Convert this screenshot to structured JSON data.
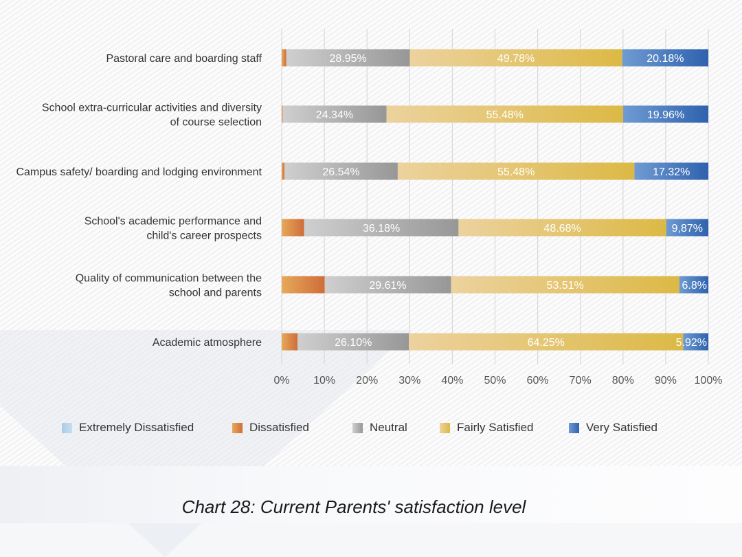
{
  "chart_data": {
    "type": "bar",
    "orientation": "horizontal",
    "stacked": true,
    "title": "Chart 28: Current Parents' satisfaction level",
    "xlabel": "",
    "ylabel": "",
    "xlim": [
      0,
      100
    ],
    "x_ticks": [
      "0%",
      "10%",
      "20%",
      "30%",
      "40%",
      "50%",
      "60%",
      "70%",
      "80%",
      "90%",
      "100%"
    ],
    "grid": true,
    "legend_position": "bottom",
    "categories": [
      [
        "Pastoral care and boarding staff"
      ],
      [
        "School extra-curricular activities and diversity",
        "of course selection"
      ],
      [
        "Campus safety/ boarding and lodging environment"
      ],
      [
        "School's academic performance and",
        "child's career prospects"
      ],
      [
        "Quality of communication between the",
        "school and parents"
      ],
      [
        "Academic atmosphere"
      ]
    ],
    "series": [
      {
        "name": "Extremely Dissatisfied",
        "color": "#a9cbe8",
        "color2": "#c9def0",
        "values": [
          0,
          0,
          0,
          0,
          0,
          0
        ],
        "labels": [
          "",
          "",
          "",
          "",
          "",
          ""
        ]
      },
      {
        "name": "Dissatisfied",
        "color": "#e6a95a",
        "color2": "#cf6d3a",
        "values": [
          1.09,
          0.22,
          0.66,
          5.27,
          10.08,
          3.73
        ],
        "labels": [
          "",
          "",
          "",
          "",
          "",
          ""
        ]
      },
      {
        "name": "Neutral",
        "color": "#cfcfcf",
        "color2": "#979797",
        "values": [
          28.95,
          24.34,
          26.54,
          36.18,
          29.61,
          26.1
        ],
        "labels": [
          "28.95%",
          "24.34%",
          "26.54%",
          "36.18%",
          "29.61%",
          "26.10%"
        ]
      },
      {
        "name": "Fairly Satisfied",
        "color": "#ecd29e",
        "color2": "#dcb945",
        "values": [
          49.78,
          55.48,
          55.48,
          48.68,
          53.51,
          64.25
        ],
        "labels": [
          "49.78%",
          "55.48%",
          "55.48%",
          "48.68%",
          "53.51%",
          "64.25%"
        ]
      },
      {
        "name": "Very Satisfied",
        "color": "#6f9bd2",
        "color2": "#2f62ae",
        "values": [
          20.18,
          19.96,
          17.32,
          9.87,
          6.8,
          5.92
        ],
        "labels": [
          "20.18%",
          "19.96%",
          "17.32%",
          "9,87%",
          "6.8%",
          "5.92%"
        ]
      }
    ]
  }
}
